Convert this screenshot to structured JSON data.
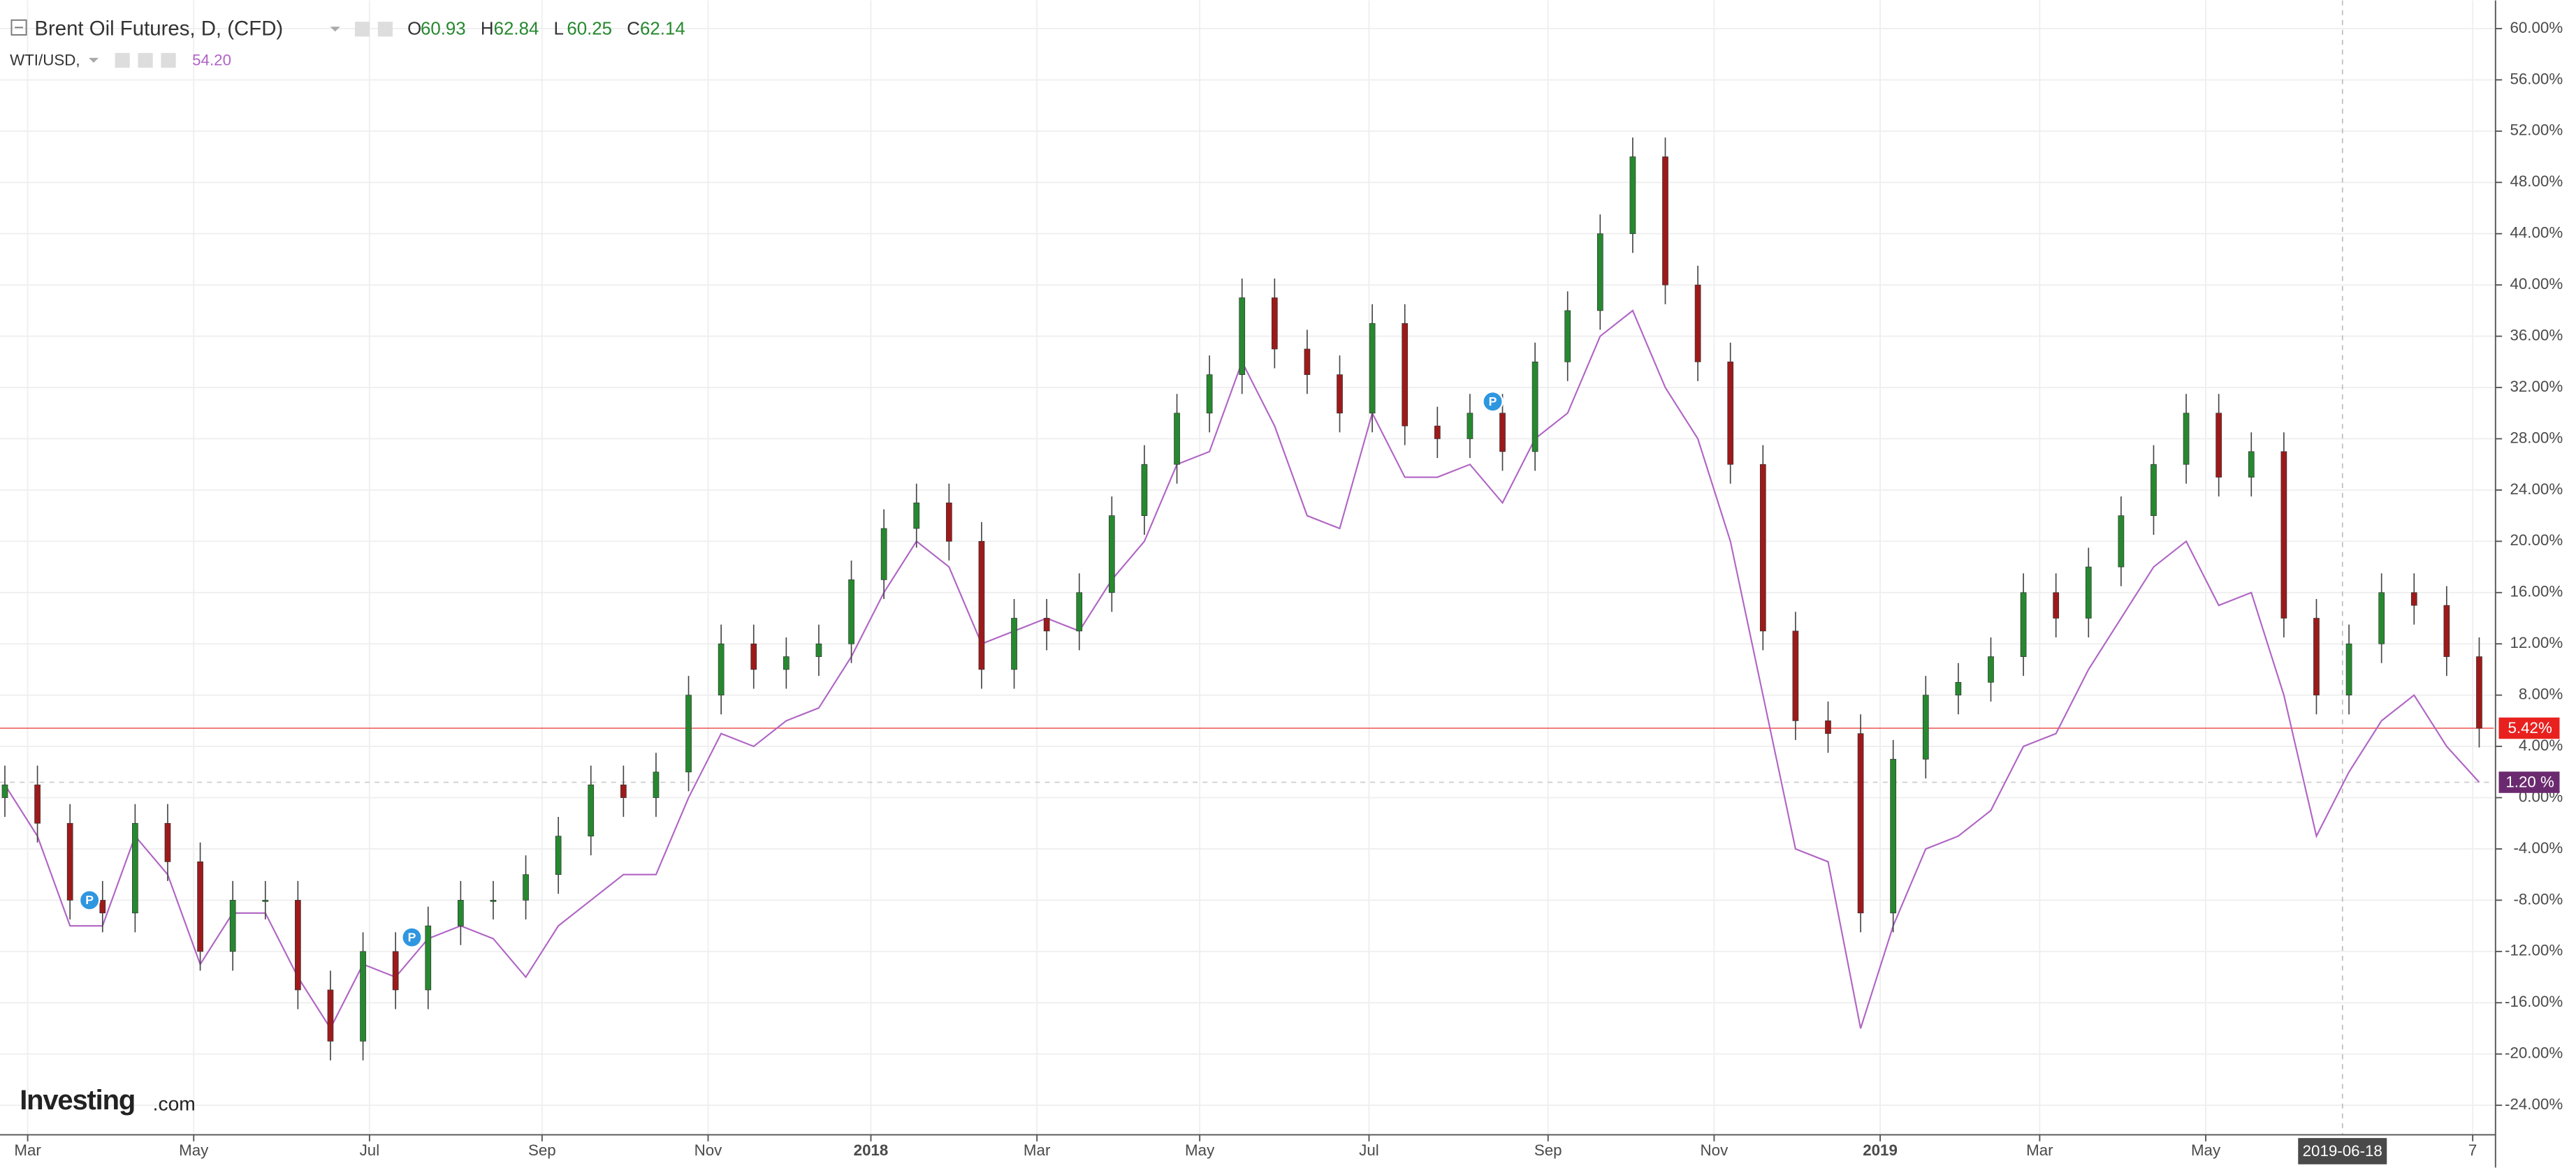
{
  "chart_data": {
    "type": "candlestick",
    "title": "Brent Oil Futures, D, (CFD)",
    "ohlc_legend": [
      {
        "key": "O",
        "value": 60.93
      },
      {
        "key": "H",
        "value": 62.84
      },
      {
        "key": "L",
        "value": 60.25
      },
      {
        "key": "C",
        "value": 62.14
      }
    ],
    "compare_legend": {
      "name": "WTI/USD,",
      "value": {
        "value": 54.2,
        "label": "54.20"
      }
    },
    "watermark": [
      "Investing",
      ".com"
    ],
    "up_color": "#26892f",
    "down_color": "#9e1a1a",
    "candles": {
      "open": [
        0,
        1,
        -2,
        -8,
        -9,
        -2,
        -5,
        -12,
        -8,
        -8,
        -15,
        -19,
        -12,
        -15,
        -10,
        -8,
        -8,
        -6,
        -3,
        1,
        0,
        2,
        8,
        12,
        10,
        11,
        12,
        17,
        21,
        23,
        20,
        10,
        14,
        13,
        16,
        22,
        26,
        30,
        33,
        39,
        35,
        33,
        30,
        37,
        29,
        28,
        30,
        27,
        34,
        38,
        44,
        50,
        40,
        34,
        26,
        13,
        6,
        5,
        -9,
        3,
        8,
        9,
        11,
        16,
        14,
        18,
        22,
        26,
        30,
        25,
        27,
        14,
        8,
        12,
        16,
        15,
        11
      ],
      "high": [
        2.5,
        2.5,
        -0.5,
        -6.5,
        -0.5,
        -0.5,
        -3.5,
        -6.5,
        -6.5,
        -6.5,
        -13.5,
        -10.5,
        -10.5,
        -8.5,
        -6.5,
        -6.5,
        -4.5,
        -1.5,
        2.5,
        2.5,
        3.5,
        9.5,
        13.5,
        13.5,
        12.5,
        13.5,
        18.5,
        22.5,
        24.5,
        24.5,
        21.5,
        15.5,
        15.5,
        17.5,
        23.5,
        27.5,
        31.5,
        34.5,
        40.5,
        40.5,
        36.5,
        34.5,
        38.5,
        38.5,
        30.5,
        31.5,
        31.5,
        35.5,
        39.5,
        45.5,
        51.5,
        51.5,
        41.5,
        35.5,
        27.5,
        14.5,
        7.5,
        6.5,
        4.5,
        9.5,
        10.5,
        12.5,
        17.5,
        17.5,
        19.5,
        23.5,
        27.5,
        31.5,
        31.5,
        28.5,
        28.5,
        15.5,
        13.5,
        17.5,
        17.5,
        16.5,
        12.5
      ],
      "low": [
        -1.5,
        -3.5,
        -9.5,
        -10.5,
        -10.5,
        -6.5,
        -13.5,
        -13.5,
        -9.5,
        -16.5,
        -20.5,
        -20.5,
        -16.5,
        -16.5,
        -11.5,
        -9.5,
        -9.5,
        -7.5,
        -4.5,
        -1.5,
        -1.5,
        0.5,
        6.5,
        8.5,
        8.5,
        9.5,
        10.5,
        15.5,
        19.5,
        18.5,
        8.5,
        8.5,
        11.5,
        11.5,
        14.5,
        20.5,
        24.5,
        28.5,
        31.5,
        33.5,
        31.5,
        28.5,
        28.5,
        27.5,
        26.5,
        26.5,
        25.5,
        25.5,
        32.5,
        36.5,
        42.5,
        38.5,
        32.5,
        24.5,
        11.5,
        4.5,
        3.5,
        -10.5,
        -10.5,
        1.5,
        6.5,
        7.5,
        9.5,
        12.5,
        12.5,
        16.5,
        20.5,
        24.5,
        23.5,
        23.5,
        12.5,
        6.5,
        6.5,
        10.5,
        13.5,
        9.5,
        3.92
      ],
      "close": [
        1,
        -2,
        -8,
        -9,
        -2,
        -5,
        -12,
        -8,
        -8,
        -15,
        -19,
        -12,
        -15,
        -10,
        -8,
        -8,
        -6,
        -3,
        1,
        0,
        2,
        8,
        12,
        10,
        11,
        12,
        17,
        21,
        23,
        20,
        10,
        14,
        13,
        16,
        22,
        26,
        30,
        33,
        39,
        35,
        33,
        30,
        37,
        29,
        28,
        30,
        27,
        34,
        38,
        44,
        50,
        40,
        34,
        26,
        13,
        6,
        5,
        -9,
        3,
        8,
        9,
        11,
        16,
        14,
        18,
        22,
        26,
        30,
        25,
        27,
        14,
        8,
        12,
        16,
        15,
        11,
        5.42
      ],
      "last_label": {
        "value": 5.42,
        "label": "5.42%"
      },
      "color": "#e8211f"
    },
    "series": [
      {
        "name": "WTI/USD",
        "color": "#b064c4",
        "values": [
          1,
          -3,
          -10,
          -10,
          -3,
          -6,
          -13,
          -9,
          -9,
          -14,
          -18,
          -13,
          -14,
          -11,
          -10,
          -11,
          -14,
          -10,
          -8,
          -6,
          -6,
          0,
          5,
          4,
          6,
          7,
          11,
          16,
          20,
          18,
          12,
          13,
          14,
          13,
          17,
          20,
          26,
          27,
          34,
          29,
          22,
          21,
          30,
          25,
          25,
          26,
          23,
          28,
          30,
          36,
          38,
          32,
          28,
          20,
          8,
          -4,
          -5,
          -18,
          -10,
          -4,
          -3,
          -1,
          4,
          5,
          10,
          14,
          18,
          20,
          15,
          16,
          8,
          -3,
          2,
          6,
          8,
          4,
          1.2
        ],
        "last_label": {
          "value": 1.2,
          "label": "1.20 %"
        }
      }
    ],
    "markers": [
      {
        "x": 2.6,
        "y": -8,
        "label": "P"
      },
      {
        "x": 12.5,
        "y": -10.9,
        "label": "P"
      },
      {
        "x": 45.7,
        "y": 30.9,
        "label": "P"
      }
    ],
    "crosshair": {
      "x": 71.8,
      "label": "2019-06-18"
    },
    "xlim": [
      -0.15,
      76.45
    ],
    "ylim": [
      -26.3,
      62.2
    ],
    "xticks": [
      {
        "value": 0.7,
        "label": "Mar"
      },
      {
        "value": 5.8,
        "label": "May"
      },
      {
        "value": 11.2,
        "label": "Jul"
      },
      {
        "value": 16.5,
        "label": "Sep"
      },
      {
        "value": 21.6,
        "label": "Nov"
      },
      {
        "value": 26.6,
        "label": "2018"
      },
      {
        "value": 31.7,
        "label": "Mar"
      },
      {
        "value": 36.7,
        "label": "May"
      },
      {
        "value": 41.9,
        "label": "Jul"
      },
      {
        "value": 47.4,
        "label": "Sep"
      },
      {
        "value": 52.5,
        "label": "Nov"
      },
      {
        "value": 57.6,
        "label": "2019"
      },
      {
        "value": 62.5,
        "label": "Mar"
      },
      {
        "value": 67.6,
        "label": "May"
      },
      {
        "value": 75.8,
        "label": "7"
      }
    ],
    "yticks": [
      {
        "value": -24,
        "label": "-24.00%"
      },
      {
        "value": -20,
        "label": "-20.00%"
      },
      {
        "value": -16,
        "label": "-16.00%"
      },
      {
        "value": -12,
        "label": "-12.00%"
      },
      {
        "value": -8,
        "label": "-8.00%"
      },
      {
        "value": -4,
        "label": "-4.00%"
      },
      {
        "value": 0,
        "label": "0.00%"
      },
      {
        "value": 4,
        "label": "4.00%"
      },
      {
        "value": 8,
        "label": "8.00%"
      },
      {
        "value": 12,
        "label": "12.00%"
      },
      {
        "value": 16,
        "label": "16.00%"
      },
      {
        "value": 20,
        "label": "20.00%"
      },
      {
        "value": 24,
        "label": "24.00%"
      },
      {
        "value": 28,
        "label": "28.00%"
      },
      {
        "value": 32,
        "label": "32.00%"
      },
      {
        "value": 36,
        "label": "36.00%"
      },
      {
        "value": 40,
        "label": "40.00%"
      },
      {
        "value": 44,
        "label": "44.00%"
      },
      {
        "value": 48,
        "label": "48.00%"
      },
      {
        "value": 52,
        "label": "52.00%"
      },
      {
        "value": 56,
        "label": "56.00%"
      },
      {
        "value": 60,
        "label": "60.00%"
      }
    ],
    "grid": true
  }
}
